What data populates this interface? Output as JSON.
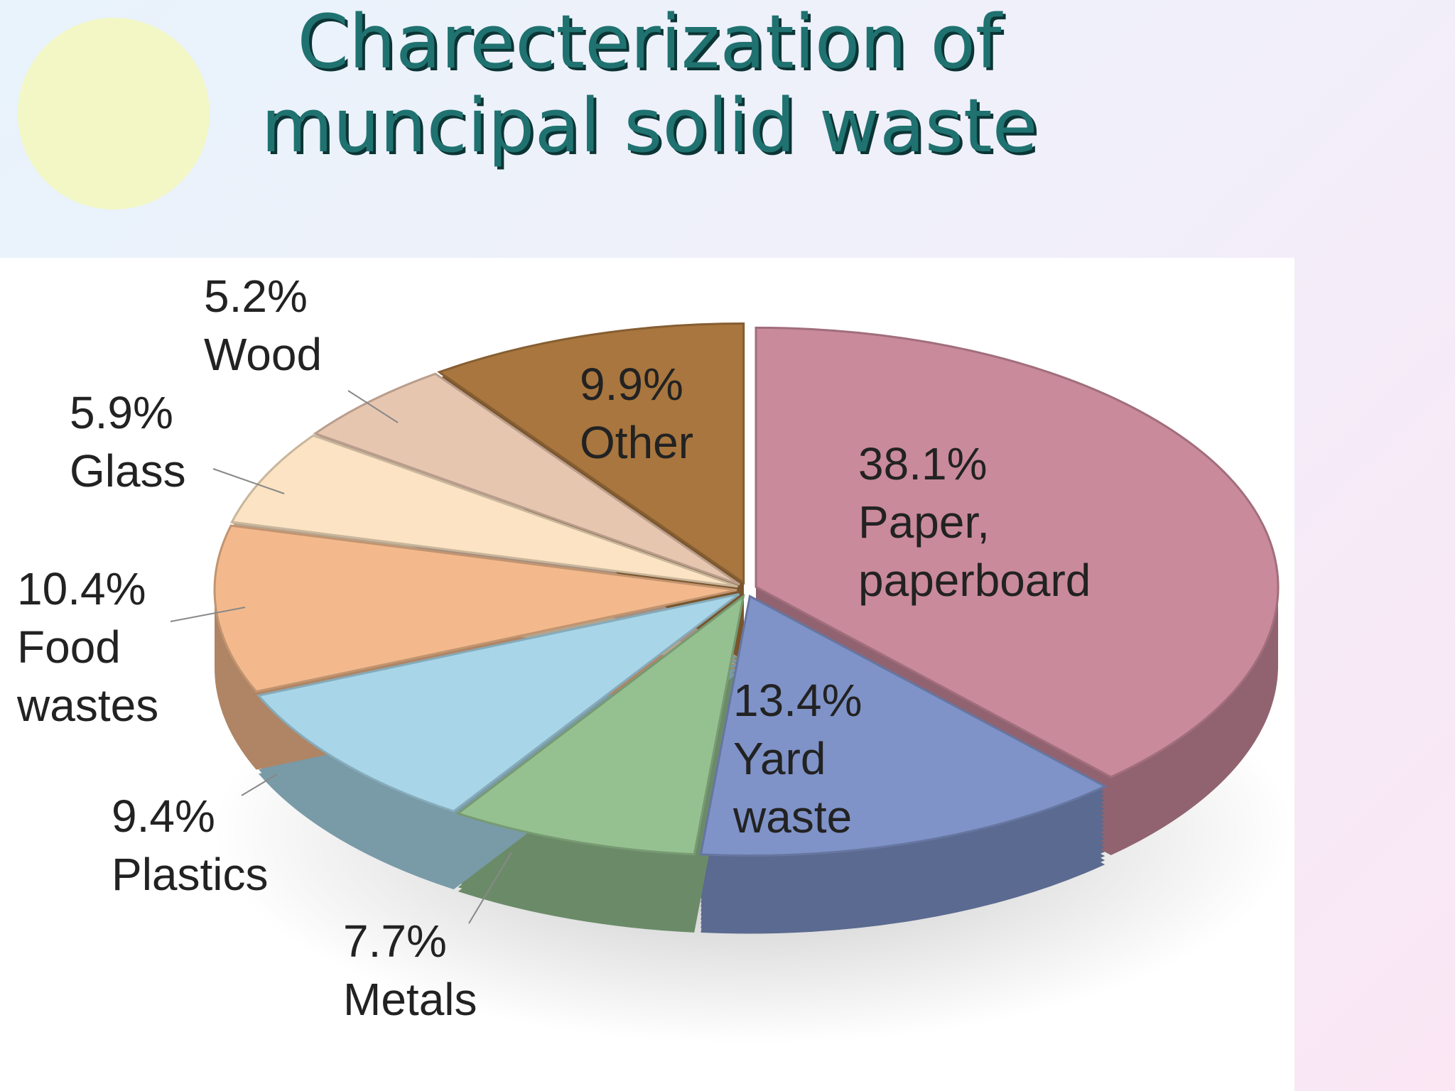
{
  "chart_data": {
    "type": "pie",
    "title": "Charecterization of muncipal solid waste",
    "categories": [
      "Paper, paperboard",
      "Yard waste",
      "Metals",
      "Plastics",
      "Food wastes",
      "Glass",
      "Wood",
      "Other"
    ],
    "values": [
      38.1,
      13.4,
      7.7,
      9.4,
      10.4,
      5.9,
      5.2,
      9.9
    ],
    "value_labels": [
      "38.1%",
      "13.4%",
      "7.7%",
      "9.4%",
      "10.4%",
      "5.9%",
      "5.2%",
      "9.9%"
    ],
    "colors": [
      "#c98a9b",
      "#7f93c8",
      "#95c190",
      "#a8d6e8",
      "#f3b98c",
      "#fbe3c3",
      "#e7c6b0",
      "#a8763e"
    ]
  }
}
